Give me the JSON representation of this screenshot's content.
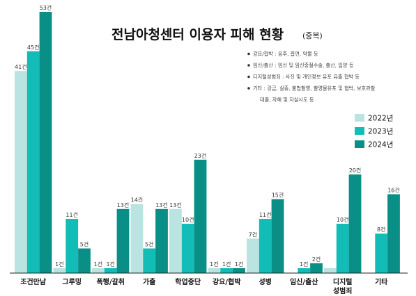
{
  "chart_data": {
    "type": "bar",
    "title": "전남아청센터 이용자 피해 현황",
    "subtitle": "(중복)",
    "unit_suffix": "건",
    "categories": [
      [
        "조건만남"
      ],
      [
        "그루밍"
      ],
      [
        "폭행/갈취"
      ],
      [
        "가출"
      ],
      [
        "학업중단"
      ],
      [
        "강요/협박"
      ],
      [
        "성병"
      ],
      [
        "임신/출산"
      ],
      [
        "디지털",
        "성범죄"
      ],
      [
        "기타"
      ]
    ],
    "series": [
      {
        "name": "2022년",
        "color": "#b9e4e1",
        "values": [
          41,
          1,
          1,
          14,
          13,
          1,
          7,
          0,
          1,
          0
        ]
      },
      {
        "name": "2023년",
        "color": "#12bdb7",
        "values": [
          45,
          11,
          1,
          5,
          10,
          1,
          11,
          1,
          10,
          8
        ]
      },
      {
        "name": "2024년",
        "color": "#0a8f87",
        "values": [
          53,
          5,
          13,
          13,
          23,
          1,
          15,
          2,
          20,
          16
        ]
      }
    ],
    "hidden_labels": [
      [
        7,
        0
      ],
      [
        8,
        0
      ],
      [
        9,
        0
      ]
    ],
    "ylim": [
      0,
      53
    ],
    "legend_position": "right",
    "grid": false,
    "notes": [
      {
        "lines": [
          "강요/협박 : 음주, 흡연, 약물 등"
        ]
      },
      {
        "lines": [
          "임신/출산 : 임신 및 임신중절수술, 출산, 입양 등"
        ]
      },
      {
        "lines": [
          "디지털성범죄 : 사진 및 개인정보 유포 유출 협박 등"
        ]
      },
      {
        "lines": [
          "기타 : 강금, 실종, 불법촬영, 촬영물유포 및 협박, 보호관찰",
          "대출, 자해 및 자살시도 등"
        ]
      }
    ]
  }
}
